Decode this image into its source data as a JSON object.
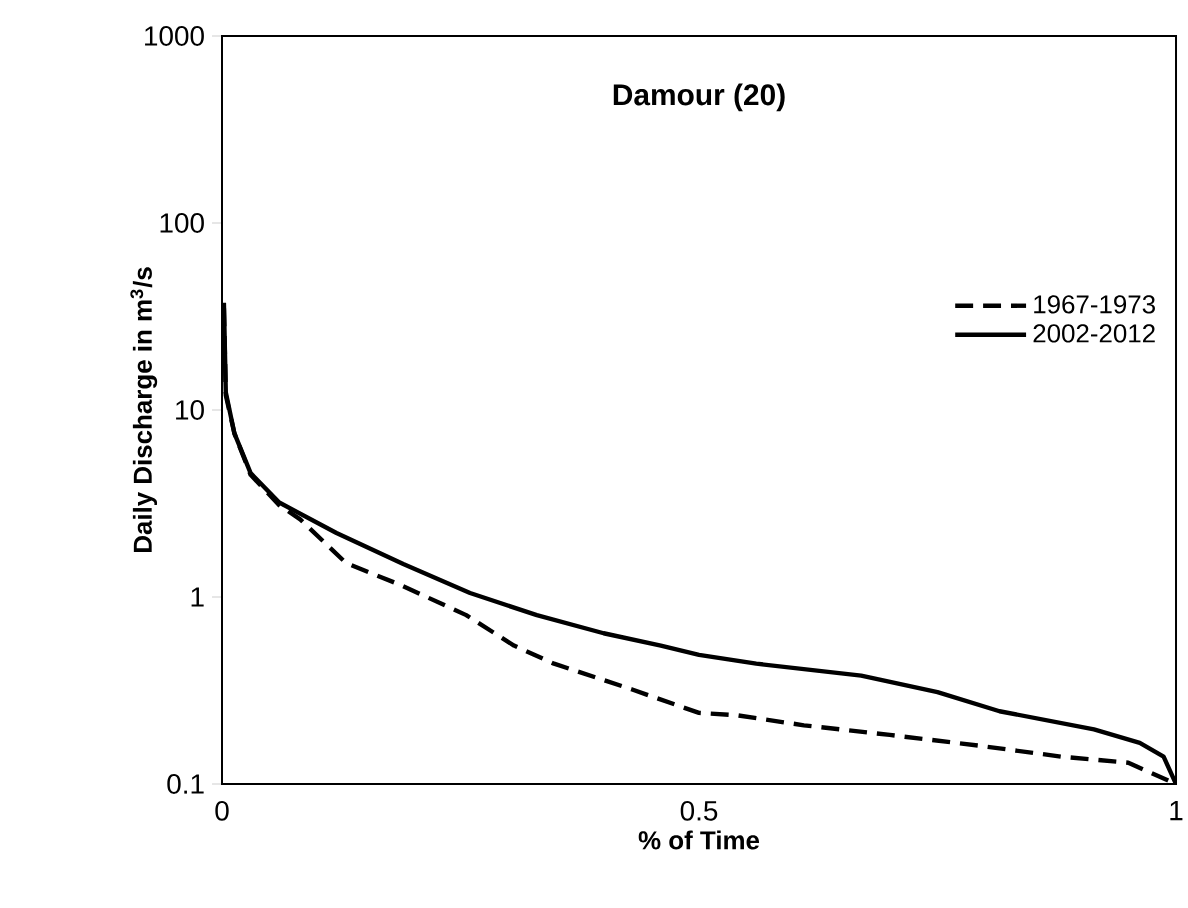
{
  "chart_data": {
    "type": "line",
    "title": "Damour (20)",
    "xlabel": "% of Time",
    "ylabel": "Daily Discharge in m$^{3}$/s",
    "log": "y",
    "xlim": [
      0,
      1
    ],
    "ylim": [
      0.1,
      1000
    ],
    "xticks": [
      0,
      0.5,
      1
    ],
    "yticks": [
      0.1,
      1,
      10,
      100,
      1000
    ],
    "legend": "right",
    "grid": false,
    "marker": "none",
    "series": [
      {
        "name": "1967-1973",
        "color": "#000000",
        "line_style": "dashed",
        "x": [
          0.002,
          0.004,
          0.013,
          0.03,
          0.06,
          0.082,
          0.13,
          0.187,
          0.256,
          0.306,
          0.348,
          0.43,
          0.5,
          0.54,
          0.61,
          0.7,
          0.795,
          0.88,
          0.95,
          1
        ],
        "values": [
          35,
          12,
          7.5,
          4.5,
          3.1,
          2.6,
          1.52,
          1.16,
          0.8,
          0.55,
          0.44,
          0.32,
          0.24,
          0.233,
          0.206,
          0.183,
          0.16,
          0.14,
          0.13,
          0.1
        ]
      },
      {
        "name": "2002-2012",
        "color": "#000000",
        "line_style": "solid",
        "x": [
          0.002,
          0.004,
          0.013,
          0.03,
          0.06,
          0.12,
          0.19,
          0.26,
          0.33,
          0.4,
          0.46,
          0.5,
          0.56,
          0.67,
          0.75,
          0.815,
          0.914,
          0.962,
          0.987,
          1
        ],
        "values": [
          37.5,
          12.4,
          7.5,
          4.6,
          3.2,
          2.2,
          1.5,
          1.05,
          0.8,
          0.64,
          0.55,
          0.49,
          0.44,
          0.38,
          0.31,
          0.245,
          0.196,
          0.166,
          0.14,
          0.1
        ]
      }
    ]
  }
}
